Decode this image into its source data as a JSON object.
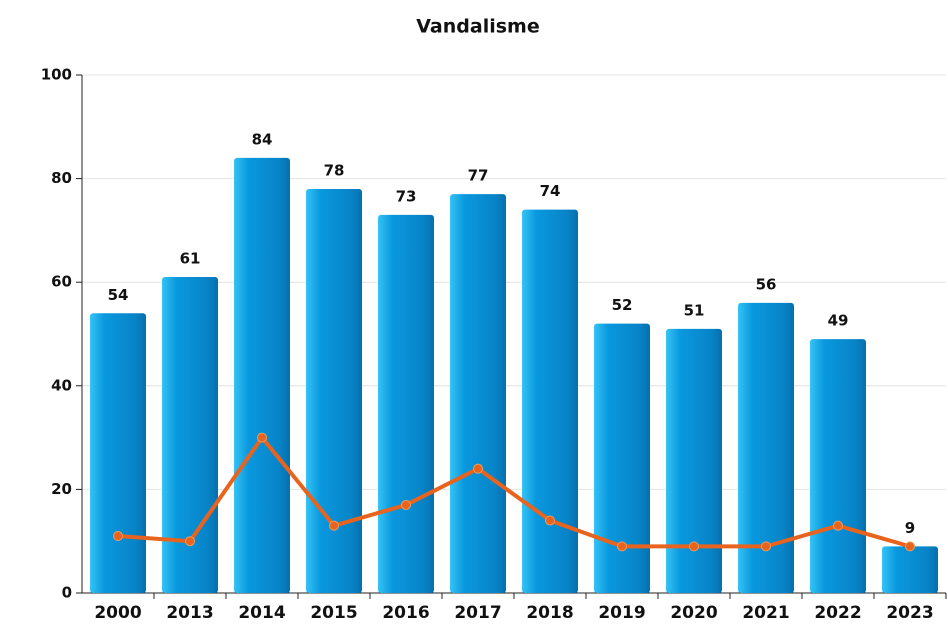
{
  "chart_data": {
    "type": "bar",
    "title": "Vandalisme",
    "categories": [
      "2000",
      "2013",
      "2014",
      "2015",
      "2016",
      "2017",
      "2018",
      "2019",
      "2020",
      "2021",
      "2022",
      "2023"
    ],
    "series": [
      {
        "type": "bar",
        "color": "#0a8bd2",
        "values": [
          54,
          61,
          84,
          78,
          73,
          77,
          74,
          52,
          51,
          56,
          49,
          9
        ]
      },
      {
        "type": "line",
        "color": "#e8641e",
        "values": [
          11,
          10,
          30,
          13,
          17,
          24,
          14,
          9,
          9,
          9,
          13,
          9
        ]
      }
    ],
    "ylim": [
      0,
      100
    ],
    "yticks": [
      0,
      20,
      40,
      60,
      80,
      100
    ],
    "grid": true,
    "value_labels_on": "bar"
  }
}
